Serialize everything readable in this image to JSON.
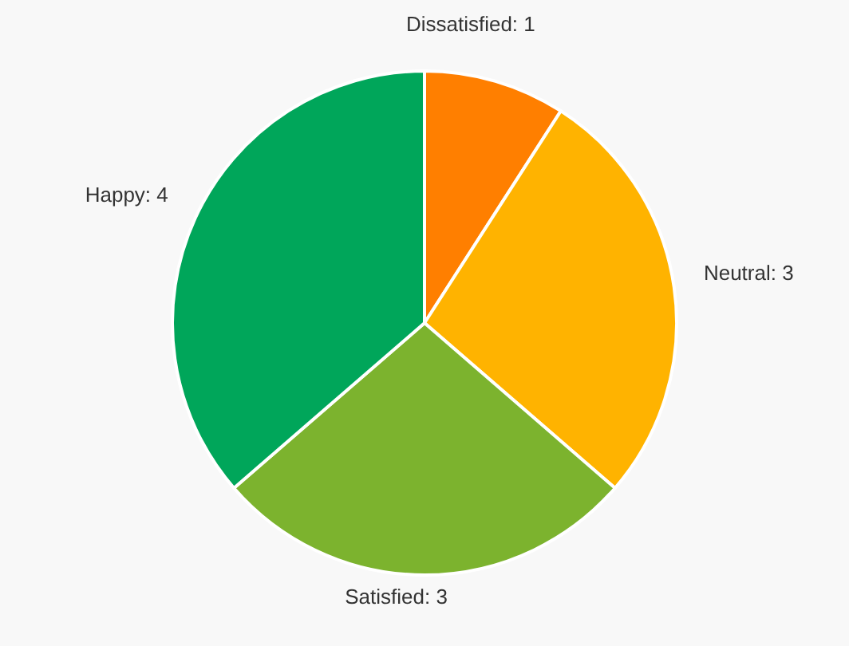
{
  "chart_data": {
    "type": "pie",
    "categories": [
      "Dissatisfied",
      "Neutral",
      "Satisfied",
      "Happy"
    ],
    "values": [
      1,
      3,
      3,
      4
    ],
    "colors": [
      "#ff7f00",
      "#ffb300",
      "#7cb32e",
      "#00a65a"
    ],
    "value_labels": [
      ": 1",
      ": 3",
      ": 3",
      ": 4"
    ]
  }
}
